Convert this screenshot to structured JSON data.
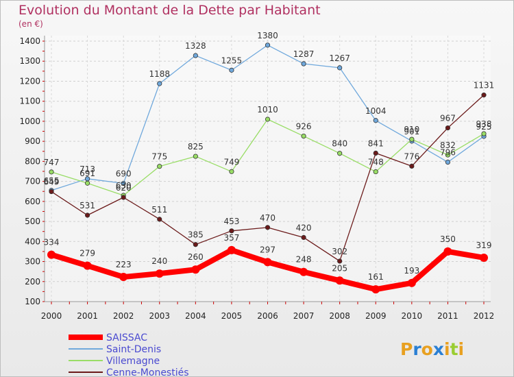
{
  "chart_data": {
    "type": "line",
    "title": "Evolution du Montant de la Dette par Habitant",
    "subtitle": "(en €)",
    "xlabel": "",
    "ylabel": "",
    "ylim": [
      100,
      1400
    ],
    "yticks": [
      100,
      200,
      300,
      400,
      500,
      600,
      700,
      800,
      900,
      1000,
      1100,
      1200,
      1300,
      1400
    ],
    "grid": true,
    "legend_position": "bottom-left",
    "x": [
      "2000",
      "2001",
      "2002",
      "2003",
      "2004",
      "2005",
      "2006",
      "2007",
      "2008",
      "2009",
      "2010",
      "2011",
      "2012"
    ],
    "series": [
      {
        "name": "SAISSAC",
        "color": "#ff0000",
        "values": [
          334,
          279,
          223,
          240,
          260,
          357,
          297,
          248,
          205,
          161,
          193,
          350,
          319
        ],
        "labels": [
          "334",
          "279",
          "223",
          "240",
          "260",
          "357",
          "297",
          "248",
          "205",
          "161",
          "193",
          "350",
          "319"
        ]
      },
      {
        "name": "Saint-Denis",
        "color": "#6fa8dc",
        "values": [
          655,
          713,
          690,
          1188,
          1328,
          1255,
          1380,
          1287,
          1267,
          1004,
          901,
          796,
          925
        ],
        "labels": [
          "655",
          "713",
          "690",
          "1188",
          "1328",
          "1255",
          "1380",
          "1287",
          "1267",
          "1004",
          "901",
          "796",
          "925"
        ]
      },
      {
        "name": "Villemagne",
        "color": "#99dd66",
        "values": [
          747,
          691,
          630,
          775,
          825,
          749,
          1010,
          926,
          840,
          748,
          910,
          832,
          938
        ],
        "labels": [
          "747",
          "691",
          "630",
          "775",
          "825",
          "749",
          "1010",
          "926",
          "840",
          "748",
          "910",
          "832",
          "938"
        ]
      },
      {
        "name": "Cenne-Monestiés",
        "color": "#6b1a1a",
        "values": [
          649,
          531,
          620,
          511,
          385,
          453,
          470,
          420,
          302,
          841,
          776,
          967,
          1131
        ],
        "labels": [
          "649",
          "531",
          "620",
          "511",
          "385",
          "453",
          "470",
          "420",
          "302",
          "841",
          "776",
          "967",
          "1131"
        ]
      }
    ]
  },
  "branding": {
    "logo_text": "Proxiti"
  }
}
